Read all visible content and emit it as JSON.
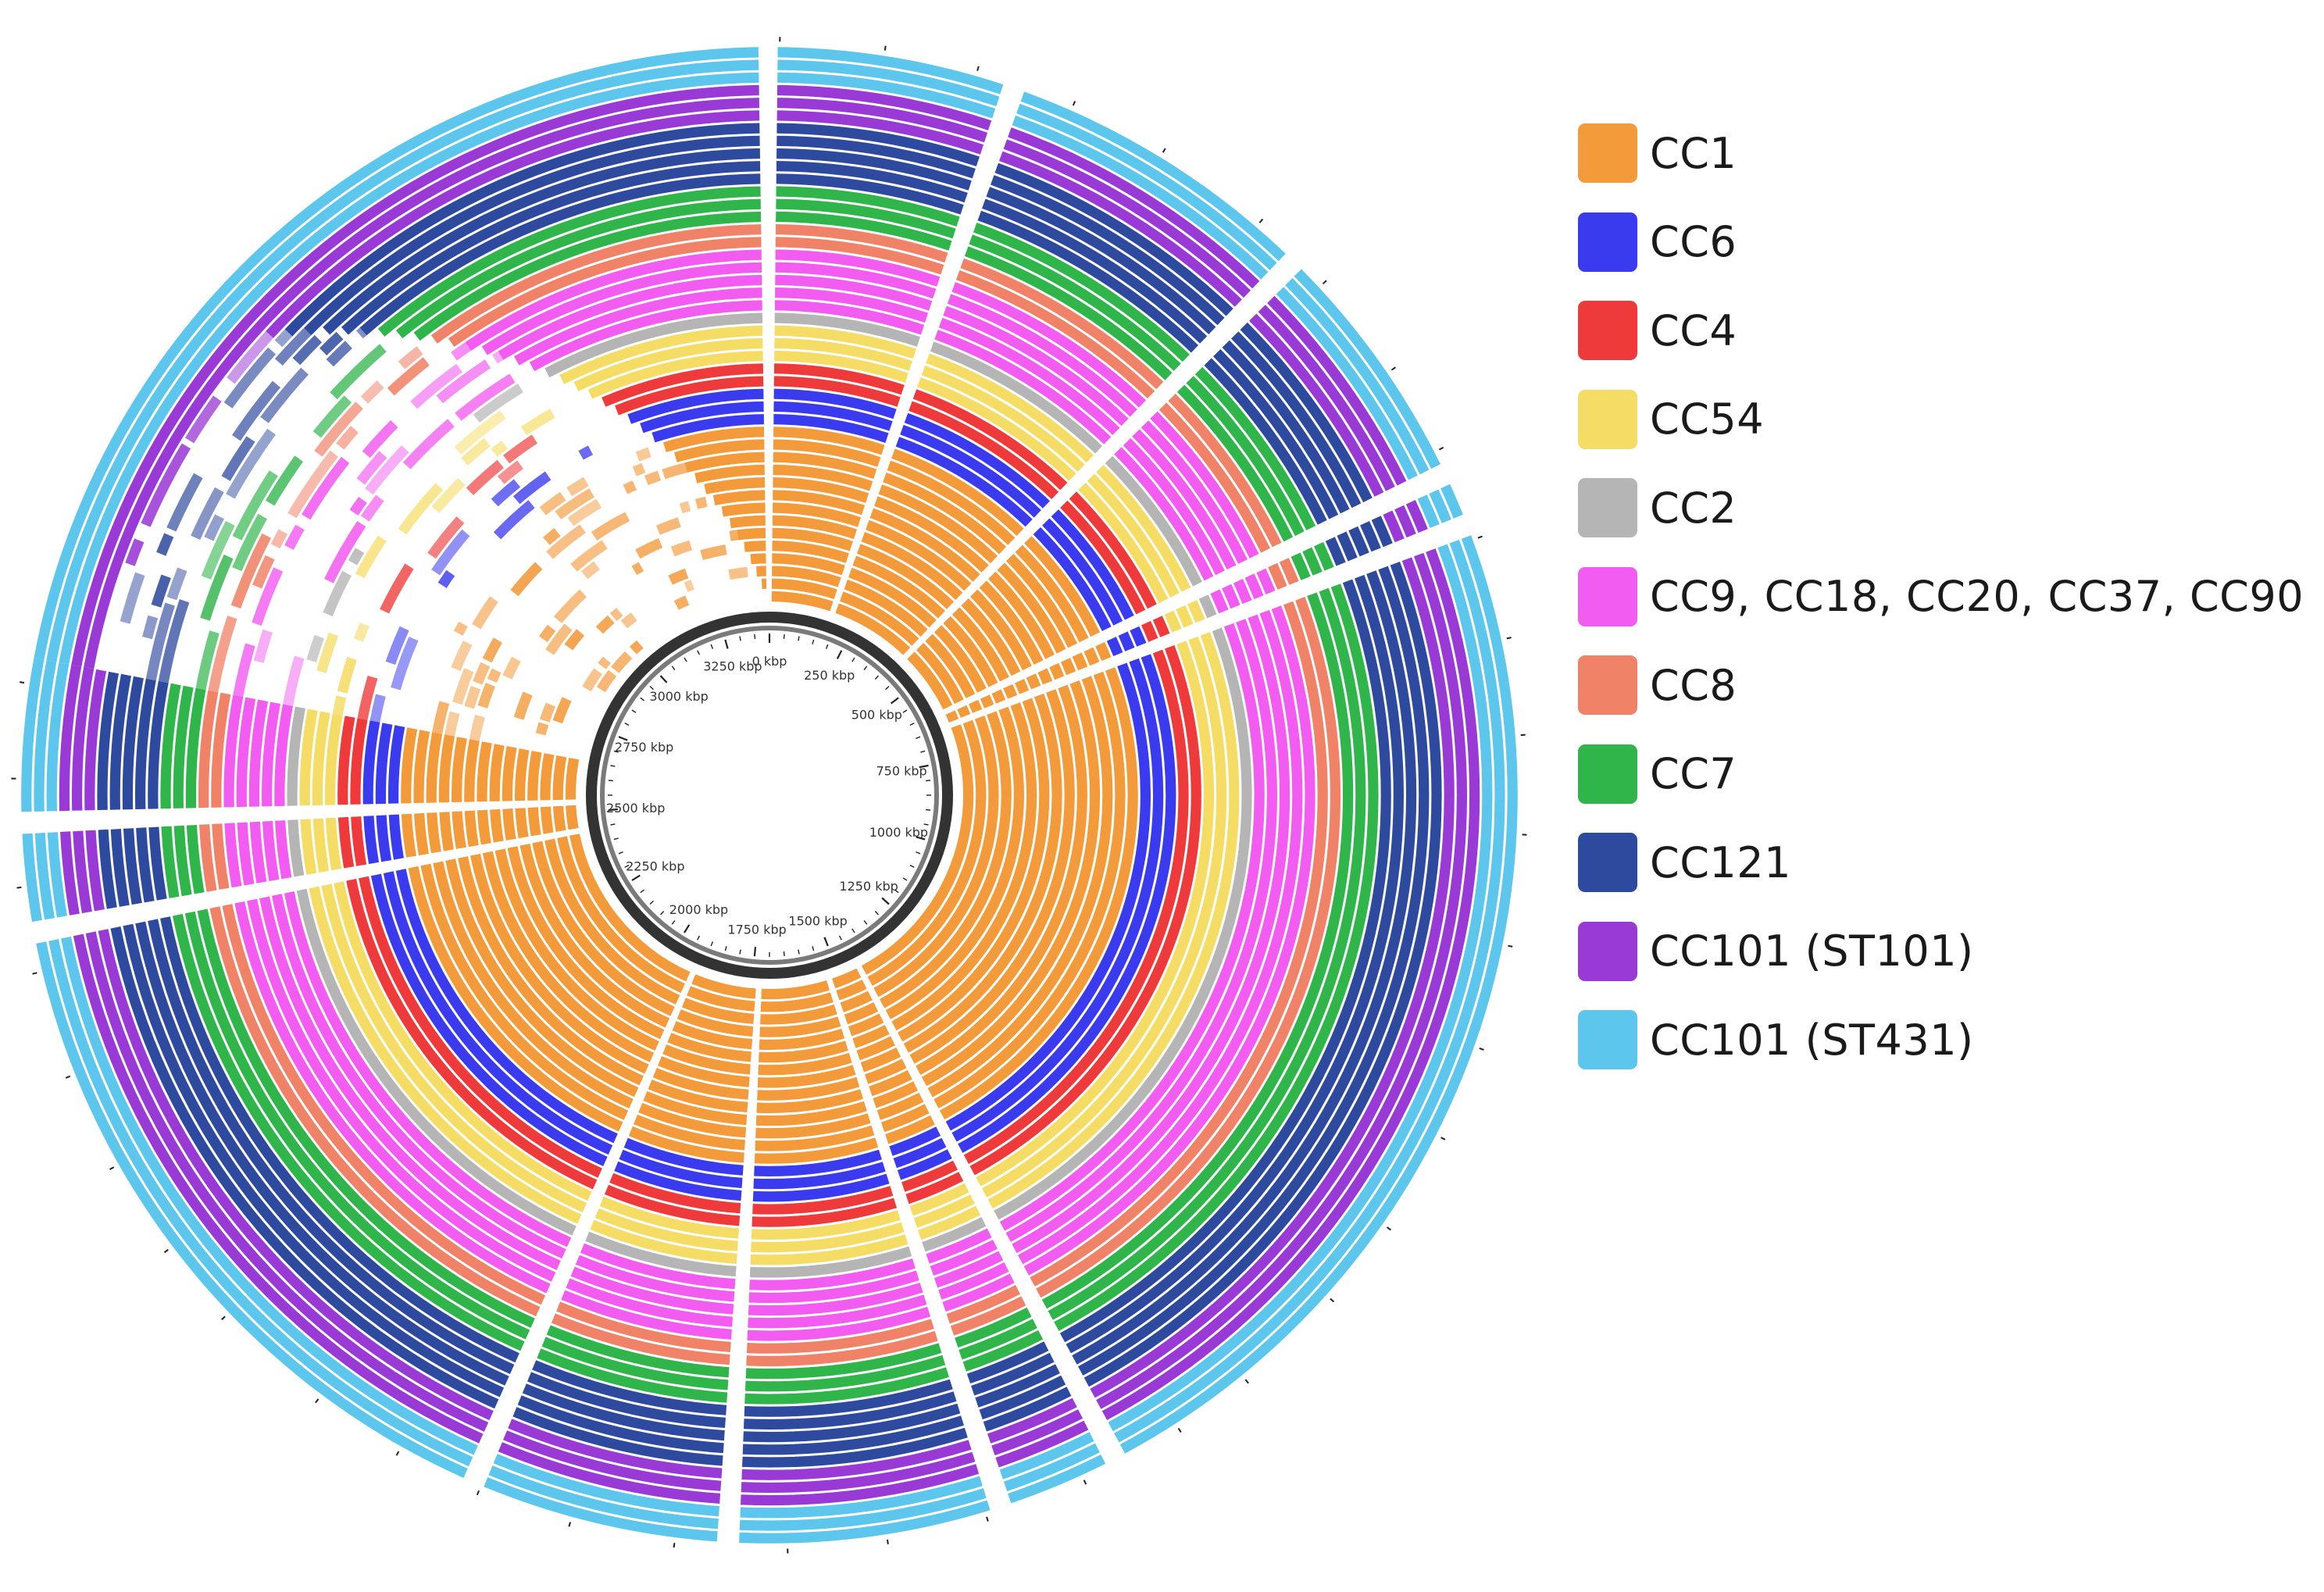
{
  "figure": {
    "type": "circular-genome-comparison",
    "axis_unit": "kbp",
    "axis_max_kbp": 3400,
    "tick_labels": [
      {
        "kbp": 0,
        "text": "0 kbp"
      },
      {
        "kbp": 250,
        "text": "250 kbp"
      },
      {
        "kbp": 500,
        "text": "500 kbp"
      },
      {
        "kbp": 750,
        "text": "750 kbp"
      },
      {
        "kbp": 1000,
        "text": "1000 kbp"
      },
      {
        "kbp": 1250,
        "text": "1250 kbp"
      },
      {
        "kbp": 1500,
        "text": "1500 kbp"
      },
      {
        "kbp": 1750,
        "text": "1750 kbp"
      },
      {
        "kbp": 2000,
        "text": "2000 kbp"
      },
      {
        "kbp": 2250,
        "text": "2250 kbp"
      },
      {
        "kbp": 2500,
        "text": "2500 kbp"
      },
      {
        "kbp": 2750,
        "text": "2750 kbp"
      },
      {
        "kbp": 3000,
        "text": "3000 kbp"
      },
      {
        "kbp": 3250,
        "text": "3250 kbp"
      }
    ],
    "ring_groups": [
      {
        "id": "CC1",
        "color": "#f39a3b",
        "tracks": 14
      },
      {
        "id": "CC6",
        "color": "#3a3aee",
        "tracks": 3
      },
      {
        "id": "CC4",
        "color": "#ee3a3a",
        "tracks": 2
      },
      {
        "id": "CC54",
        "color": "#f5dc64",
        "tracks": 3
      },
      {
        "id": "CC2",
        "color": "#b5b5b5",
        "tracks": 1
      },
      {
        "id": "CC9, CC18, CC20, CC37, CC90",
        "color": "#f25cf0",
        "tracks": 5
      },
      {
        "id": "CC8",
        "color": "#f08268",
        "tracks": 2
      },
      {
        "id": "CC7",
        "color": "#2fb54a",
        "tracks": 3
      },
      {
        "id": "CC121",
        "color": "#2e4a9e",
        "tracks": 5
      },
      {
        "id": "CC101 (ST101)",
        "color": "#9a3ad6",
        "tracks": 3
      },
      {
        "id": "CC101 (ST431)",
        "color": "#5cc6ec",
        "tracks": 3
      }
    ]
  },
  "legend": {
    "items": [
      {
        "label": "CC1",
        "color": "#f39a3b"
      },
      {
        "label": "CC6",
        "color": "#3a3aee"
      },
      {
        "label": "CC4",
        "color": "#ee3a3a"
      },
      {
        "label": "CC54",
        "color": "#f5dc64"
      },
      {
        "label": "CC2",
        "color": "#b5b5b5"
      },
      {
        "label": "CC9, CC18, CC20, CC37, CC90",
        "color": "#f25cf0"
      },
      {
        "label": "CC8",
        "color": "#f08268"
      },
      {
        "label": "CC7",
        "color": "#2fb54a"
      },
      {
        "label": "CC121",
        "color": "#2e4a9e"
      },
      {
        "label": "CC101 (ST101)",
        "color": "#9a3ad6"
      },
      {
        "label": "CC101 (ST431)",
        "color": "#5cc6ec"
      }
    ]
  }
}
